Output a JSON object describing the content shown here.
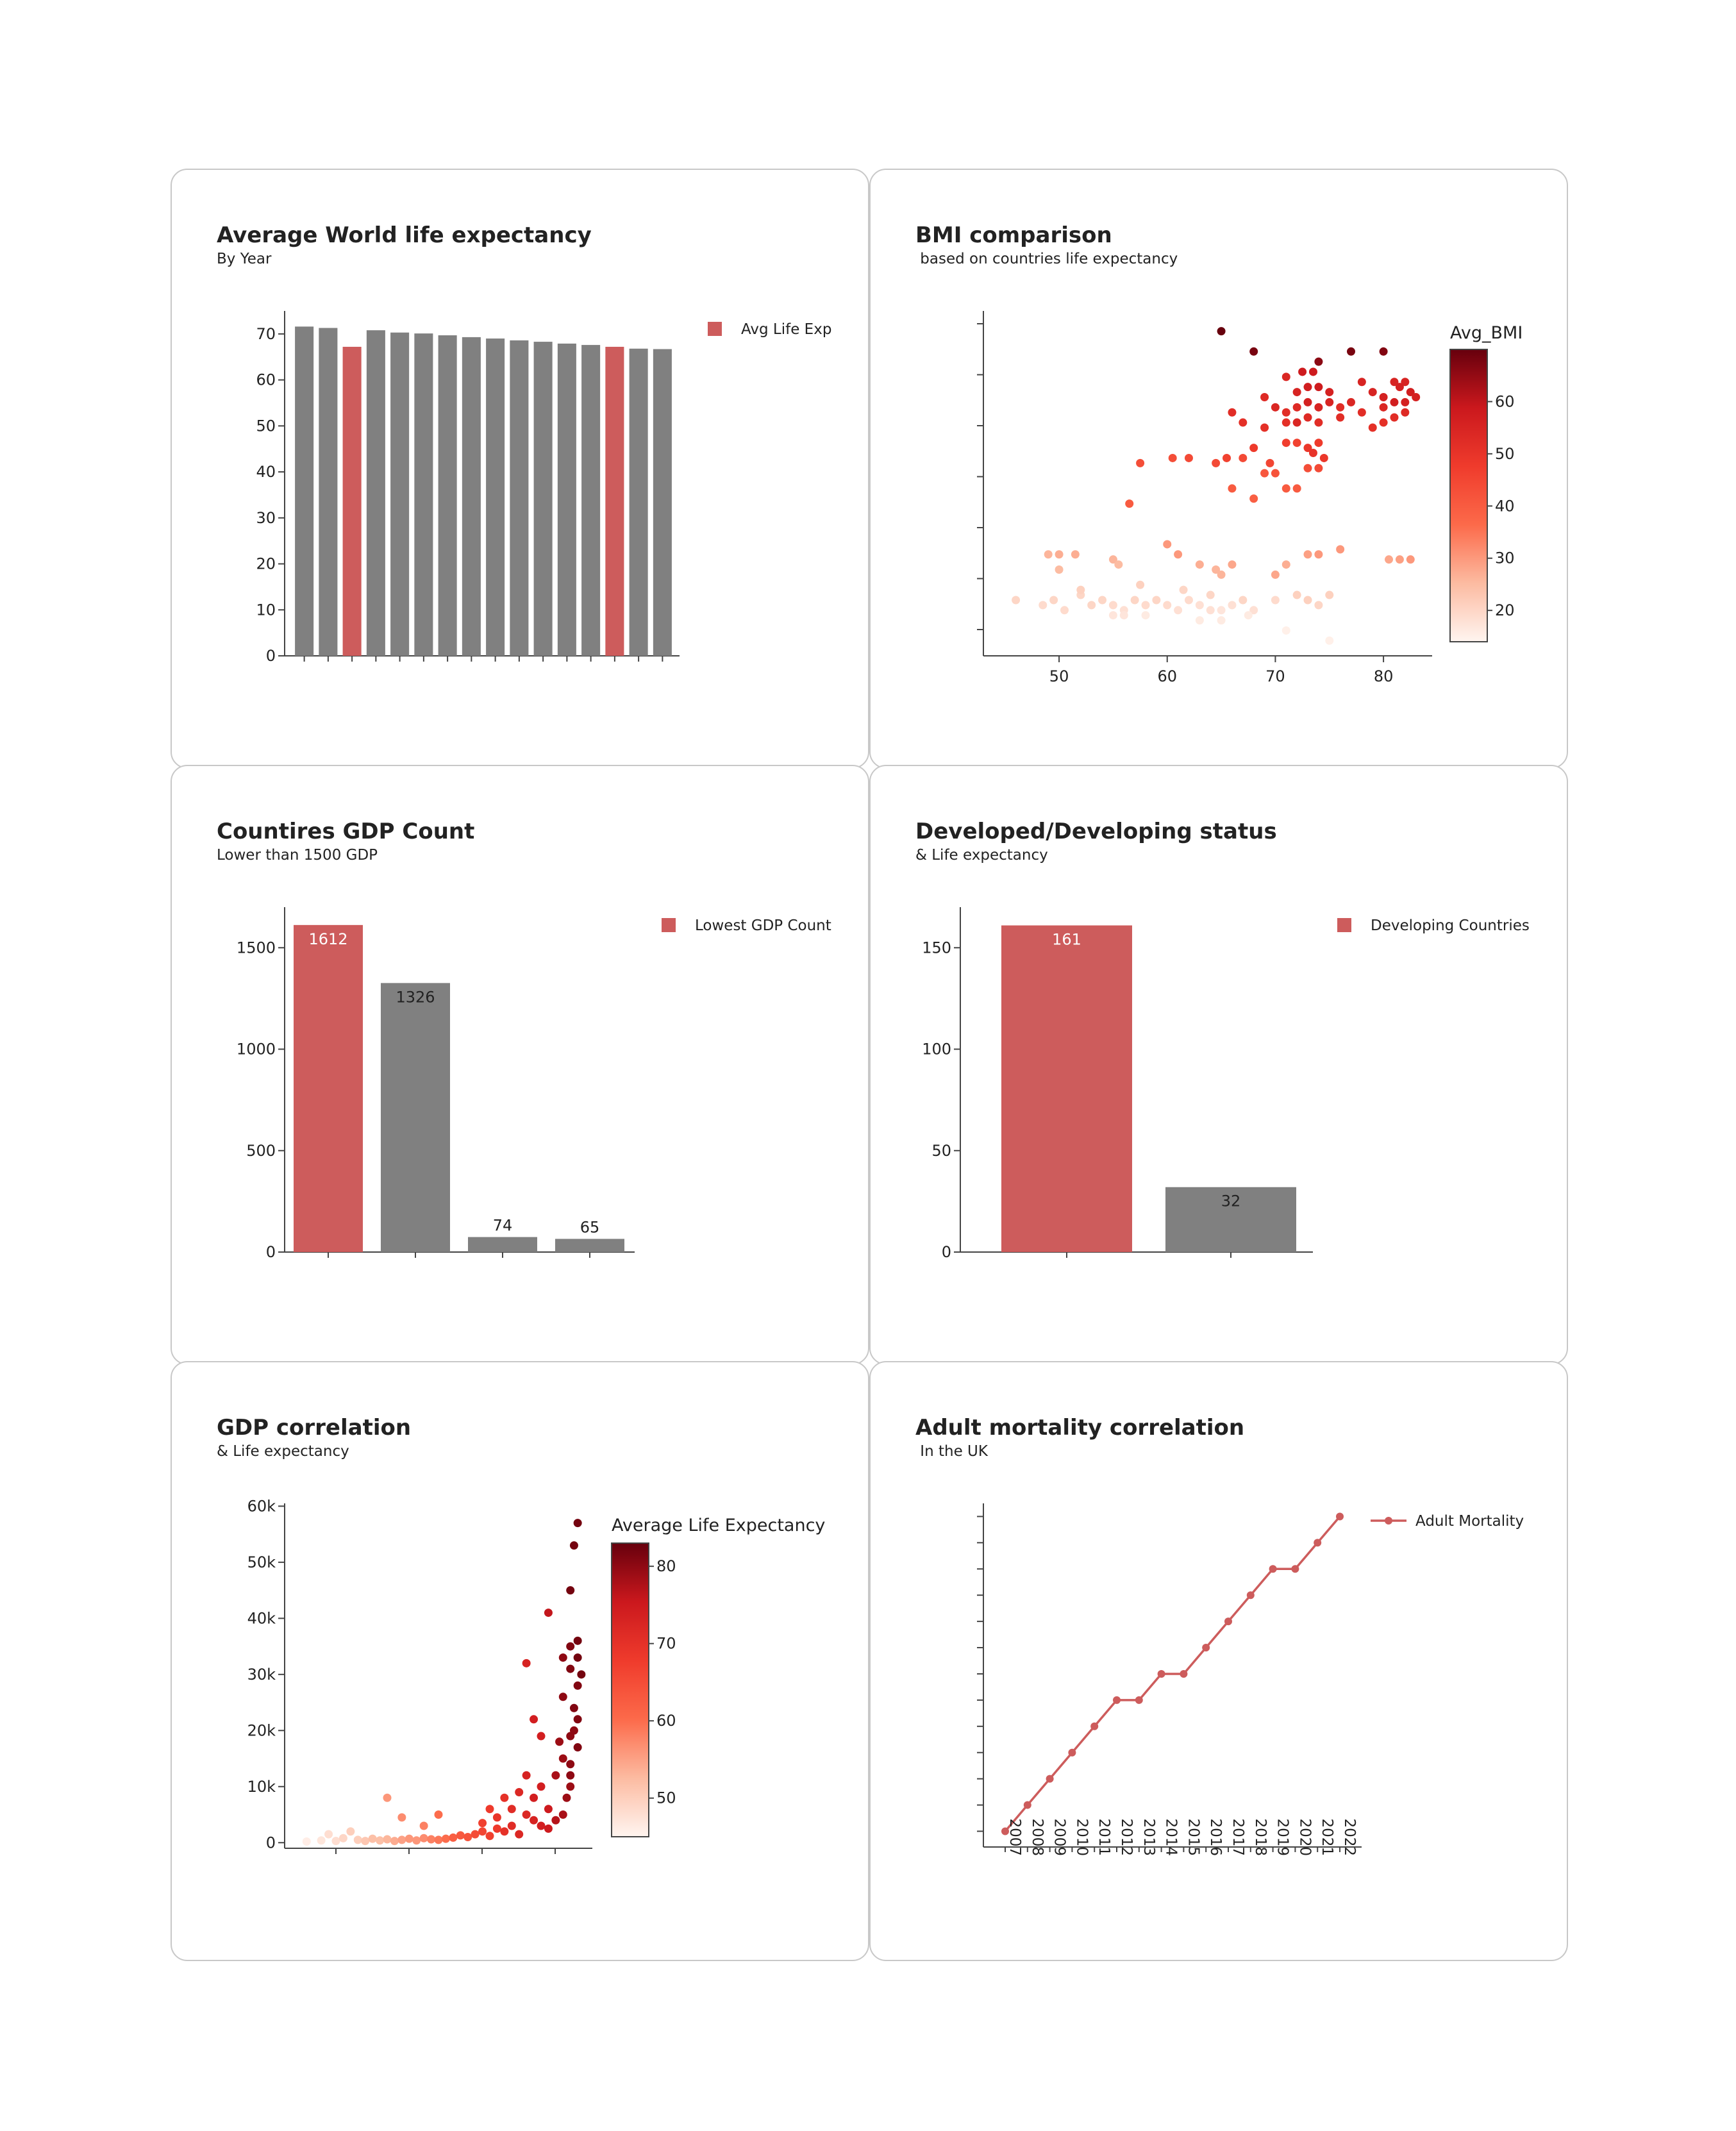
{
  "colors": {
    "highlight": "#cd5c5c",
    "neutral": "#808080",
    "axis": "#444444"
  },
  "charts": [
    {
      "id": "life",
      "title": "Average World life expectancy",
      "subtitle": "By Year",
      "chart_data": {
        "type": "bar",
        "values": [
          71.6,
          71.3,
          67.2,
          70.8,
          70.3,
          70.1,
          69.7,
          69.3,
          69.0,
          68.6,
          68.3,
          67.9,
          67.6,
          67.2,
          66.8,
          66.7
        ],
        "highlight_index": [
          2,
          13
        ],
        "ylim": [
          0,
          75
        ],
        "yticks": [
          "0",
          "10",
          "20",
          "30",
          "40",
          "50",
          "60",
          "70"
        ],
        "legend": {
          "label": "Avg Life Exp",
          "position": "top-right"
        }
      }
    },
    {
      "id": "bmi",
      "title": "BMI comparison",
      "subtitle": " based on countries life expectancy",
      "chart_data": {
        "type": "scatter",
        "x_ticks": [
          "50",
          "60",
          "70",
          "80"
        ],
        "xlim": [
          43,
          84.5
        ],
        "ylim": [
          0,
          68
        ],
        "colorbar": {
          "title": "Avg_BMI",
          "ticks": [
            "20",
            "30",
            "40",
            "50",
            "60"
          ],
          "range": [
            14,
            70
          ]
        },
        "points": [
          [
            65,
            64,
            70
          ],
          [
            68,
            60,
            68
          ],
          [
            74,
            58,
            66
          ],
          [
            77,
            60,
            68
          ],
          [
            80,
            60,
            67
          ],
          [
            72.5,
            56,
            58
          ],
          [
            73.5,
            56,
            58
          ],
          [
            71,
            55,
            54
          ],
          [
            78,
            54,
            55
          ],
          [
            81,
            54,
            55
          ],
          [
            82,
            54,
            55
          ],
          [
            69,
            51,
            53
          ],
          [
            72,
            52,
            55
          ],
          [
            73,
            53,
            57
          ],
          [
            74,
            53,
            58
          ],
          [
            75,
            52,
            56
          ],
          [
            79,
            52,
            55
          ],
          [
            80,
            51,
            56
          ],
          [
            81.5,
            53,
            56
          ],
          [
            82.5,
            52,
            57
          ],
          [
            66,
            48,
            52
          ],
          [
            70,
            49,
            54
          ],
          [
            71,
            48,
            52
          ],
          [
            72,
            49,
            53
          ],
          [
            73,
            50,
            56
          ],
          [
            74,
            49,
            55
          ],
          [
            75,
            50,
            55
          ],
          [
            76,
            49,
            52
          ],
          [
            77,
            50,
            54
          ],
          [
            78,
            48,
            52
          ],
          [
            80,
            49,
            54
          ],
          [
            81,
            50,
            57
          ],
          [
            82,
            50,
            56
          ],
          [
            83,
            51,
            56
          ],
          [
            67,
            46,
            51
          ],
          [
            69,
            45,
            51
          ],
          [
            71,
            46,
            51
          ],
          [
            72,
            46,
            54
          ],
          [
            73,
            47,
            53
          ],
          [
            74,
            46,
            52
          ],
          [
            76,
            47,
            52
          ],
          [
            79,
            45,
            51
          ],
          [
            80,
            46,
            51
          ],
          [
            81,
            47,
            52
          ],
          [
            82,
            48,
            53
          ],
          [
            65.5,
            39,
            46
          ],
          [
            68,
            41,
            48
          ],
          [
            69.5,
            38,
            45
          ],
          [
            71,
            42,
            47
          ],
          [
            72,
            42,
            46
          ],
          [
            73,
            41,
            49
          ],
          [
            74,
            42,
            48
          ],
          [
            74.5,
            39,
            49
          ],
          [
            73.5,
            40,
            50
          ],
          [
            57.5,
            38,
            43
          ],
          [
            60.5,
            39,
            43
          ],
          [
            62,
            39,
            44
          ],
          [
            64.5,
            38,
            44
          ],
          [
            67,
            39,
            44
          ],
          [
            69,
            36,
            41
          ],
          [
            70,
            36,
            42
          ],
          [
            71,
            33,
            40
          ],
          [
            72,
            33,
            40
          ],
          [
            73,
            37,
            43
          ],
          [
            74,
            37,
            44
          ],
          [
            66,
            33,
            40
          ],
          [
            68,
            31,
            39
          ],
          [
            56.5,
            30,
            40
          ],
          [
            49,
            20,
            26
          ],
          [
            50,
            20,
            27
          ],
          [
            51.5,
            20,
            27
          ],
          [
            55,
            19,
            26
          ],
          [
            61,
            20,
            30
          ],
          [
            63,
            18,
            27
          ],
          [
            65,
            16,
            26
          ],
          [
            66,
            18,
            28
          ],
          [
            70,
            16,
            28
          ],
          [
            71,
            18,
            27
          ],
          [
            73,
            20,
            29
          ],
          [
            74,
            20,
            30
          ],
          [
            76,
            21,
            30
          ],
          [
            60,
            22,
            30
          ],
          [
            64.5,
            17,
            26
          ],
          [
            80.5,
            19,
            28
          ],
          [
            81.5,
            19,
            29
          ],
          [
            82.5,
            19,
            30
          ],
          [
            50,
            17,
            25
          ],
          [
            55.5,
            18,
            25
          ],
          [
            46,
            11,
            20
          ],
          [
            48.5,
            10,
            19
          ],
          [
            49.5,
            11,
            20
          ],
          [
            50.5,
            9,
            19
          ],
          [
            52,
            12,
            20
          ],
          [
            53,
            10,
            20
          ],
          [
            54,
            11,
            20
          ],
          [
            55,
            10,
            19
          ],
          [
            56,
            9,
            18
          ],
          [
            57,
            11,
            20
          ],
          [
            58,
            10,
            19
          ],
          [
            59,
            11,
            20
          ],
          [
            60,
            10,
            19
          ],
          [
            61,
            9,
            18
          ],
          [
            62,
            11,
            19
          ],
          [
            63,
            10,
            18
          ],
          [
            64,
            9,
            18
          ],
          [
            65,
            9,
            17
          ],
          [
            66,
            10,
            18
          ],
          [
            67,
            11,
            20
          ],
          [
            68,
            9,
            18
          ],
          [
            70,
            11,
            19
          ],
          [
            72,
            12,
            21
          ],
          [
            73,
            11,
            21
          ],
          [
            74,
            10,
            20
          ],
          [
            75,
            12,
            21
          ],
          [
            55,
            8,
            17
          ],
          [
            56,
            8,
            17
          ],
          [
            58,
            8,
            16
          ],
          [
            63,
            7,
            16
          ],
          [
            65,
            7,
            16
          ],
          [
            67.5,
            8,
            16
          ],
          [
            71,
            5,
            15
          ],
          [
            75,
            3,
            15
          ],
          [
            52,
            13,
            21
          ],
          [
            57.5,
            14,
            21
          ],
          [
            61.5,
            13,
            20
          ],
          [
            64,
            12,
            20
          ]
        ]
      }
    },
    {
      "id": "gdp",
      "title": "Countires GDP Count",
      "subtitle": "Lower than 1500 GDP",
      "chart_data": {
        "type": "bar",
        "values": [
          1612,
          1326,
          74,
          65
        ],
        "labels": [
          "1612",
          "1326",
          "74",
          "65"
        ],
        "highlight_index": [
          0
        ],
        "ylim": [
          0,
          1700
        ],
        "yticks": [
          "0",
          "500",
          "1000",
          "1500"
        ],
        "legend": {
          "label": "Lowest GDP Count",
          "position": "top-right"
        }
      }
    },
    {
      "id": "status",
      "title": "Developed/Developing status",
      "subtitle": "& Life expectancy",
      "chart_data": {
        "type": "bar",
        "values": [
          161,
          32
        ],
        "labels": [
          "161",
          "32"
        ],
        "highlight_index": [
          0
        ],
        "ylim": [
          0,
          170
        ],
        "yticks": [
          "0",
          "50",
          "100",
          "150"
        ],
        "legend": {
          "label": "Developing Countries",
          "position": "top-right"
        }
      }
    },
    {
      "id": "gdpcorr",
      "title": "GDP correlation",
      "subtitle": "& Life expectancy",
      "chart_data": {
        "type": "scatter",
        "yticks": [
          "0",
          "10k",
          "20k",
          "30k",
          "40k",
          "50k",
          "60k"
        ],
        "ylim": [
          -1000,
          60500
        ],
        "xlim": [
          43,
          85
        ],
        "colorbar": {
          "title": "Average Life Expectancy",
          "ticks": [
            "50",
            "60",
            "70",
            "80"
          ],
          "range": [
            45,
            83
          ]
        },
        "points": [
          [
            46,
            200,
            46
          ],
          [
            48,
            400,
            47
          ],
          [
            49,
            1500,
            48
          ],
          [
            50,
            300,
            48
          ],
          [
            51,
            800,
            49
          ],
          [
            52,
            2000,
            50
          ],
          [
            53,
            500,
            50
          ],
          [
            54,
            300,
            51
          ],
          [
            55,
            700,
            52
          ],
          [
            56,
            400,
            52
          ],
          [
            57,
            600,
            53
          ],
          [
            58,
            300,
            54
          ],
          [
            59,
            500,
            55
          ],
          [
            60,
            700,
            56
          ],
          [
            61,
            400,
            56
          ],
          [
            62,
            800,
            57
          ],
          [
            63,
            600,
            58
          ],
          [
            64,
            500,
            59
          ],
          [
            65,
            700,
            60
          ],
          [
            57,
            8000,
            56
          ],
          [
            59,
            4500,
            57
          ],
          [
            62,
            3000,
            58
          ],
          [
            64,
            5000,
            60
          ],
          [
            66,
            900,
            62
          ],
          [
            67,
            1300,
            63
          ],
          [
            68,
            1000,
            64
          ],
          [
            69,
            1500,
            65
          ],
          [
            70,
            2000,
            66
          ],
          [
            71,
            1200,
            67
          ],
          [
            70,
            3500,
            67
          ],
          [
            71,
            6000,
            68
          ],
          [
            72,
            2500,
            68
          ],
          [
            72,
            4500,
            69
          ],
          [
            73,
            8000,
            70
          ],
          [
            73,
            2000,
            70
          ],
          [
            74,
            3000,
            71
          ],
          [
            74,
            6000,
            71
          ],
          [
            75,
            9000,
            72
          ],
          [
            75,
            1500,
            72
          ],
          [
            76,
            5000,
            72
          ],
          [
            76,
            12000,
            73
          ],
          [
            77,
            4000,
            73
          ],
          [
            77,
            8000,
            74
          ],
          [
            78,
            10000,
            74
          ],
          [
            78,
            3000,
            74
          ],
          [
            79,
            6000,
            75
          ],
          [
            79,
            2500,
            75
          ],
          [
            76,
            32000,
            73
          ],
          [
            77,
            22000,
            74
          ],
          [
            78,
            19000,
            74
          ],
          [
            79,
            41000,
            76
          ],
          [
            80,
            4000,
            77
          ],
          [
            80,
            12000,
            78
          ],
          [
            81,
            15000,
            79
          ],
          [
            81,
            26000,
            80
          ],
          [
            81,
            33000,
            80
          ],
          [
            82,
            19000,
            80
          ],
          [
            82,
            10000,
            79
          ],
          [
            82,
            35000,
            81
          ],
          [
            82.5,
            53000,
            82
          ],
          [
            83,
            57000,
            82
          ],
          [
            83,
            28000,
            81
          ],
          [
            82.5,
            24000,
            81
          ],
          [
            83,
            17000,
            81
          ],
          [
            82,
            31000,
            81
          ],
          [
            83,
            33000,
            82
          ],
          [
            82.5,
            20000,
            80
          ],
          [
            81.5,
            8000,
            79
          ],
          [
            82,
            12000,
            80
          ],
          [
            83.5,
            30000,
            82
          ],
          [
            83,
            22000,
            81
          ],
          [
            81,
            5000,
            78
          ],
          [
            80.5,
            18000,
            79
          ],
          [
            82,
            45000,
            82
          ],
          [
            83,
            36000,
            82
          ],
          [
            82,
            14000,
            80
          ]
        ]
      }
    },
    {
      "id": "mortality",
      "title": "Adult mortality correlation",
      "subtitle": " In the UK",
      "chart_data": {
        "type": "line",
        "x": [
          "2007",
          "2008",
          "2009",
          "2010",
          "2011",
          "2012",
          "2013",
          "2014",
          "2015",
          "2016",
          "2017",
          "2018",
          "2019",
          "2020",
          "2021",
          "2022"
        ],
        "values": [
          0,
          1,
          2,
          3,
          4,
          5,
          5,
          6,
          6,
          7,
          8,
          9,
          10,
          10,
          11,
          12
        ],
        "ylim": [
          -0.6,
          12.5
        ],
        "legend": {
          "label": "Adult Mortality",
          "position": "top-right"
        }
      }
    }
  ]
}
